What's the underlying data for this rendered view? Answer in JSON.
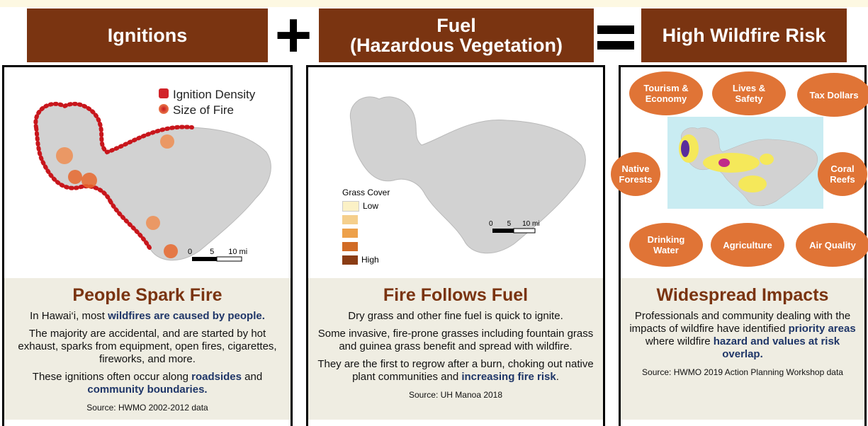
{
  "header": {
    "terms": [
      "Ignitions",
      "Fuel",
      "(Hazardous Vegetation)",
      "High Wildfire Risk"
    ]
  },
  "panels": [
    {
      "legend": [
        "Ignition Density",
        "Size of Fire"
      ],
      "scale": [
        "0",
        "5",
        "10 mi"
      ],
      "heading": "People Spark Fire",
      "paragraphs": [
        [
          {
            "text": "In Hawai‘i, most "
          },
          {
            "text": "wildfires are caused by people.",
            "strong": true
          }
        ],
        [
          {
            "text": "The majority are accidental, and are started by hot exhaust, sparks from equipment, open fires, cigarettes, fireworks, and more."
          }
        ],
        [
          {
            "text": "These ignitions often occur along "
          },
          {
            "text": "roadsides",
            "strong": true
          },
          {
            "text": " and "
          },
          {
            "text": "community boundaries.",
            "strong": true
          }
        ]
      ],
      "source": "Source: HWMO 2002-2012 data"
    },
    {
      "legend_title": "Grass Cover",
      "legend": [
        "Low",
        "High"
      ],
      "scale": [
        "0",
        "5",
        "10 mi"
      ],
      "heading": "Fire Follows Fuel",
      "paragraphs": [
        [
          {
            "text": "Dry grass and other fine fuel is quick to ignite."
          }
        ],
        [
          {
            "text": "Some invasive, fire-prone grasses including fountain grass and guinea grass benefit and spread with wildfire."
          }
        ],
        [
          {
            "text": "They are the first to regrow after a burn, choking out native plant communities and "
          },
          {
            "text": "increasing fire risk",
            "strong": true
          },
          {
            "text": "."
          }
        ]
      ],
      "source": "Source: UH Manoa 2018"
    },
    {
      "impacts": [
        "Tourism & Economy",
        "Lives & Safety",
        "Tax Dollars",
        "Native Forests",
        "Coral Reefs",
        "Drinking Water",
        "Agriculture",
        "Air Quality"
      ],
      "heading": "Widespread Impacts",
      "paragraphs": [
        [
          {
            "text": "Professionals and community dealing with the impacts of wildfire have identified "
          },
          {
            "text": "priority areas",
            "strong": true
          },
          {
            "text": " where wildfire "
          },
          {
            "text": "hazard and values at risk overlap.",
            "strong": true
          }
        ]
      ],
      "source": "Source: HWMO 2019 Action Planning Workshop data"
    }
  ]
}
